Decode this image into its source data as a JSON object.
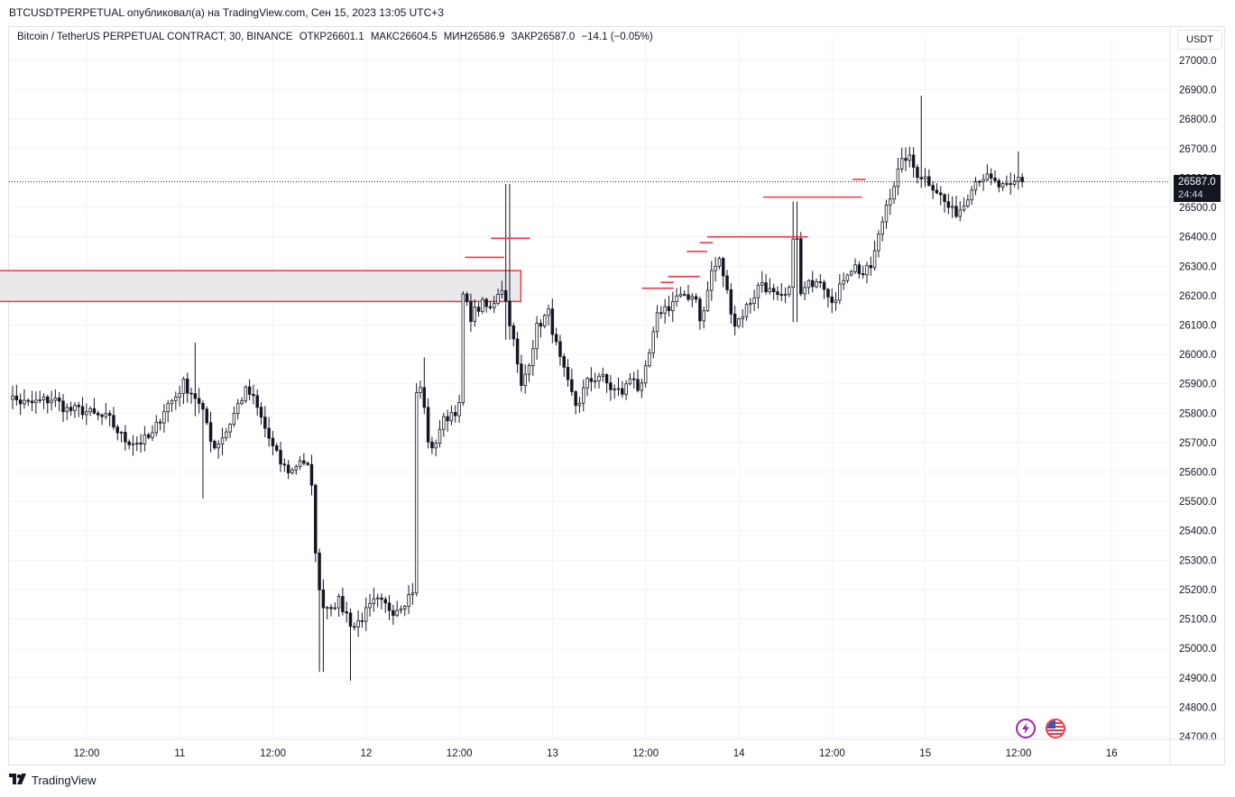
{
  "publication": {
    "text": "BTCUSDTPERPETUAL опубликовал(а) на TradingView.com, Сен 15, 2023 13:05 UTC+3"
  },
  "legend": {
    "instrument": "Bitcoin / TetherUS PERPETUAL CONTRACT, 30, BINANCE",
    "open_label": "ОТКР",
    "open_value": "26601.1",
    "high_label": "МАКС",
    "high_value": "26604.5",
    "low_label": "МИН",
    "low_value": "26586.9",
    "close_label": "ЗАКР",
    "close_value": "26587.0",
    "change": "−14.1 (−0.05%)"
  },
  "currency_button": {
    "label": "USDT"
  },
  "last_price": {
    "value": "26587.0",
    "countdown": "24:44"
  },
  "footer": {
    "brand": "TradingView"
  },
  "colors": {
    "candle": "#131722",
    "zone_fill": "#e9e9ec",
    "zone_border": "#f23645",
    "level_line": "#f23645",
    "grid": "#f0f3fa",
    "axis_text": "#131722",
    "bolt": "#9c27b0"
  },
  "icons": [
    "lightning-icon",
    "us-flag-icon",
    "tradingview-logo-icon"
  ],
  "chart_data": {
    "type": "candlestick",
    "interval": "30",
    "y_ticks": [
      "24700.0",
      "24800.0",
      "24900.0",
      "25000.0",
      "25100.0",
      "25200.0",
      "25300.0",
      "25400.0",
      "25500.0",
      "25600.0",
      "25700.0",
      "25800.0",
      "25900.0",
      "26000.0",
      "26100.0",
      "26200.0",
      "26300.0",
      "26400.0",
      "26500.0",
      "26600.0",
      "26700.0",
      "26800.0",
      "26900.0",
      "27000.0"
    ],
    "y_tick_values": [
      24700,
      24800,
      24900,
      25000,
      25100,
      25200,
      25300,
      25400,
      25500,
      25600,
      25700,
      25800,
      25900,
      26000,
      26100,
      26200,
      26300,
      26400,
      26500,
      26600,
      26700,
      26800,
      26900,
      27000
    ],
    "ylim": [
      24690,
      27050
    ],
    "x_ticks": [
      {
        "label": "12:00",
        "day": 10.5
      },
      {
        "label": "11",
        "day": 11.0
      },
      {
        "label": "12:00",
        "day": 11.5
      },
      {
        "label": "12",
        "day": 12.0
      },
      {
        "label": "12:00",
        "day": 12.5
      },
      {
        "label": "13",
        "day": 13.0
      },
      {
        "label": "12:00",
        "day": 13.5
      },
      {
        "label": "14",
        "day": 14.0
      },
      {
        "label": "12:00",
        "day": 14.5
      },
      {
        "label": "15",
        "day": 15.0
      },
      {
        "label": "12:00",
        "day": 15.5
      },
      {
        "label": "16",
        "day": 16.0
      }
    ],
    "xlim_day": [
      10.0,
      16.3
    ],
    "anchors": [
      [
        10.02,
        25890
      ],
      [
        10.1,
        25850
      ],
      [
        10.18,
        25830
      ],
      [
        10.25,
        25840
      ],
      [
        10.32,
        25850
      ],
      [
        10.4,
        25810
      ],
      [
        10.48,
        25810
      ],
      [
        10.55,
        25790
      ],
      [
        10.62,
        25780
      ],
      [
        10.7,
        25710
      ],
      [
        10.78,
        25700
      ],
      [
        10.85,
        25720
      ],
      [
        10.92,
        25820
      ],
      [
        10.97,
        25850
      ],
      [
        11.02,
        25900
      ],
      [
        11.08,
        25860
      ],
      [
        11.15,
        25760
      ],
      [
        11.18,
        25680
      ],
      [
        11.25,
        25740
      ],
      [
        11.32,
        25840
      ],
      [
        11.36,
        25880
      ],
      [
        11.4,
        25840
      ],
      [
        11.45,
        25760
      ],
      [
        11.5,
        25680
      ],
      [
        11.55,
        25620
      ],
      [
        11.6,
        25600
      ],
      [
        11.65,
        25650
      ],
      [
        11.7,
        25600
      ],
      [
        11.72,
        25440
      ],
      [
        11.74,
        25200
      ],
      [
        11.78,
        25140
      ],
      [
        11.85,
        25160
      ],
      [
        11.9,
        25110
      ],
      [
        11.93,
        25070
      ],
      [
        11.97,
        25100
      ],
      [
        12.05,
        25160
      ],
      [
        12.15,
        25130
      ],
      [
        12.22,
        25170
      ],
      [
        12.25,
        25200
      ],
      [
        12.27,
        25860
      ],
      [
        12.3,
        25900
      ],
      [
        12.32,
        25750
      ],
      [
        12.35,
        25660
      ],
      [
        12.4,
        25760
      ],
      [
        12.45,
        25800
      ],
      [
        12.5,
        25820
      ],
      [
        12.52,
        26200
      ],
      [
        12.56,
        26130
      ],
      [
        12.62,
        26170
      ],
      [
        12.67,
        26150
      ],
      [
        12.7,
        26210
      ],
      [
        12.73,
        26230
      ],
      [
        12.76,
        26150
      ],
      [
        12.8,
        26010
      ],
      [
        12.83,
        25880
      ],
      [
        12.87,
        25970
      ],
      [
        12.92,
        26100
      ],
      [
        12.98,
        26140
      ],
      [
        13.03,
        26000
      ],
      [
        13.08,
        25900
      ],
      [
        13.13,
        25820
      ],
      [
        13.18,
        25900
      ],
      [
        13.25,
        25930
      ],
      [
        13.32,
        25880
      ],
      [
        13.38,
        25870
      ],
      [
        13.43,
        25940
      ],
      [
        13.47,
        25860
      ],
      [
        13.52,
        26000
      ],
      [
        13.57,
        26150
      ],
      [
        13.62,
        26160
      ],
      [
        13.67,
        26200
      ],
      [
        13.72,
        26180
      ],
      [
        13.76,
        26220
      ],
      [
        13.8,
        26100
      ],
      [
        13.85,
        26280
      ],
      [
        13.9,
        26320
      ],
      [
        13.94,
        26200
      ],
      [
        13.98,
        26100
      ],
      [
        14.03,
        26150
      ],
      [
        14.08,
        26200
      ],
      [
        14.12,
        26250
      ],
      [
        14.17,
        26210
      ],
      [
        14.22,
        26180
      ],
      [
        14.27,
        26210
      ],
      [
        14.3,
        26500
      ],
      [
        14.33,
        26200
      ],
      [
        14.38,
        26240
      ],
      [
        14.43,
        26270
      ],
      [
        14.48,
        26210
      ],
      [
        14.52,
        26180
      ],
      [
        14.57,
        26280
      ],
      [
        14.62,
        26300
      ],
      [
        14.67,
        26270
      ],
      [
        14.71,
        26300
      ],
      [
        14.75,
        26400
      ],
      [
        14.79,
        26510
      ],
      [
        14.82,
        26560
      ],
      [
        14.86,
        26630
      ],
      [
        14.9,
        26680
      ],
      [
        14.95,
        26620
      ],
      [
        15.0,
        26600
      ],
      [
        15.05,
        26570
      ],
      [
        15.1,
        26520
      ],
      [
        15.15,
        26480
      ],
      [
        15.2,
        26500
      ],
      [
        15.25,
        26580
      ],
      [
        15.3,
        26610
      ],
      [
        15.35,
        26590
      ],
      [
        15.4,
        26570
      ],
      [
        15.45,
        26560
      ],
      [
        15.5,
        26600
      ],
      [
        15.52,
        26587
      ]
    ],
    "wick_overrides": [
      {
        "day": 11.08,
        "high": 26040,
        "low": 25790
      },
      {
        "day": 11.12,
        "low": 25510
      },
      {
        "day": 11.92,
        "low": 24890
      },
      {
        "day": 11.76,
        "low": 24920
      },
      {
        "day": 12.31,
        "high": 25990
      },
      {
        "day": 12.76,
        "high": 26580,
        "low": 26050
      },
      {
        "day": 14.3,
        "high": 26520,
        "low": 26110
      },
      {
        "day": 14.98,
        "high": 26880
      },
      {
        "day": 15.5,
        "high": 26690
      }
    ],
    "horizontal_levels": [
      {
        "price": 26330,
        "from_day": 12.53,
        "to_day": 12.74
      },
      {
        "price": 26395,
        "from_day": 12.67,
        "to_day": 12.88
      },
      {
        "price": 26225,
        "from_day": 13.48,
        "to_day": 13.65
      },
      {
        "price": 26245,
        "from_day": 13.58,
        "to_day": 13.65
      },
      {
        "price": 26265,
        "from_day": 13.62,
        "to_day": 13.79
      },
      {
        "price": 26350,
        "from_day": 13.72,
        "to_day": 13.83
      },
      {
        "price": 26380,
        "from_day": 13.79,
        "to_day": 13.86
      },
      {
        "price": 26400,
        "from_day": 13.83,
        "to_day": 14.37
      },
      {
        "price": 26535,
        "from_day": 14.13,
        "to_day": 14.66
      },
      {
        "price": 26595,
        "from_day": 14.61,
        "to_day": 14.68
      }
    ],
    "zone": {
      "from_day": 10.0,
      "to_day": 12.83,
      "top": 26285,
      "bottom": 26180
    },
    "last_price_line": 26587.0
  }
}
